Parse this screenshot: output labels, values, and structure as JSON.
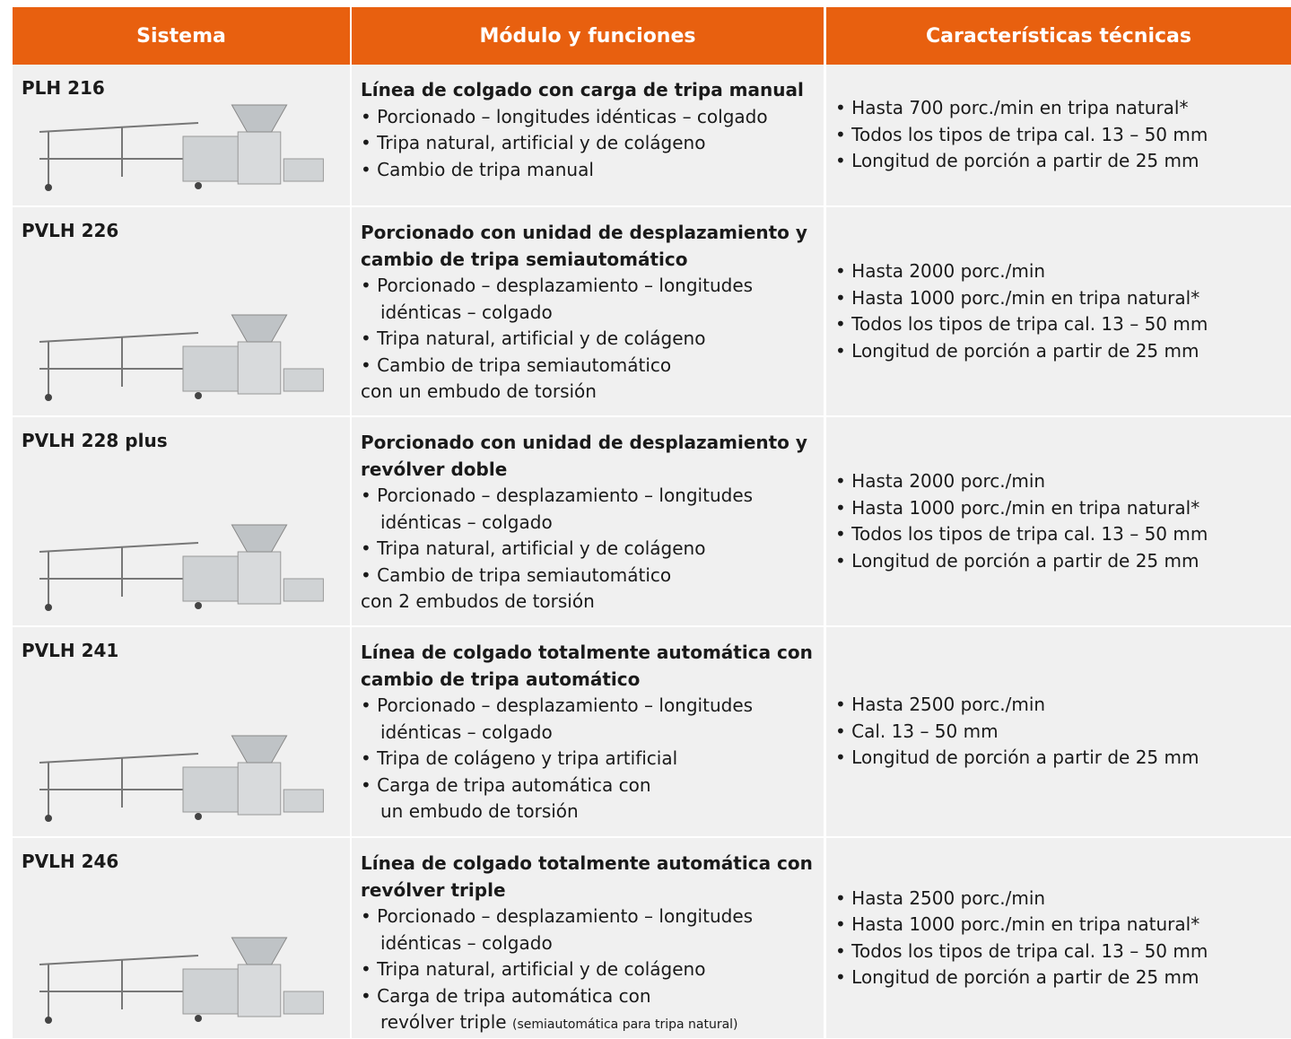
{
  "header": {
    "columns": [
      "Sistema",
      "Módulo y funciones",
      "Características técnicas"
    ]
  },
  "table": {
    "rows": [
      {
        "system": "PLH 216",
        "title": [
          "Línea de colgado con carga de tripa manual"
        ],
        "lines": [
          "• Porcionado – longitudes idénticas – colgado",
          "• Tripa natural, artificial y de colágeno",
          "• Cambio de tripa manual"
        ],
        "specs": [
          "• Hasta 700 porc./min en tripa natural*",
          "• Todos los tipos de tripa cal. 13 – 50 mm",
          "• Longitud de porción a partir de 25 mm"
        ]
      },
      {
        "system": "PVLH 226",
        "title": [
          "Porcionado con unidad de desplazamiento y",
          "cambio de tripa semiautomático"
        ],
        "lines": [
          "• Porcionado – desplazamiento – longitudes",
          "idénticas – colgado",
          "• Tripa natural, artificial y de colágeno",
          "• Cambio de tripa semiautomático",
          "con un embudo de torsión"
        ],
        "specs": [
          "• Hasta 2000 porc./min",
          "• Hasta 1000 porc./min en tripa natural*",
          "• Todos los tipos de tripa cal. 13 – 50 mm",
          "• Longitud de porción a partir de 25 mm"
        ]
      },
      {
        "system": "PVLH 228 plus",
        "title": [
          "Porcionado con unidad de desplazamiento y",
          "revólver doble"
        ],
        "lines": [
          "• Porcionado – desplazamiento – longitudes",
          "idénticas – colgado",
          "• Tripa natural, artificial y de colágeno",
          "• Cambio de tripa semiautomático",
          "con 2 embudos de torsión"
        ],
        "specs": [
          "• Hasta 2000 porc./min",
          "• Hasta 1000 porc./min en tripa natural*",
          "• Todos los tipos de tripa cal. 13 – 50 mm",
          "• Longitud de porción a partir de 25 mm"
        ]
      },
      {
        "system": "PVLH 241",
        "title": [
          "Línea de colgado totalmente automática con",
          "cambio de tripa automático"
        ],
        "lines": [
          "• Porcionado – desplazamiento – longitudes",
          "idénticas – colgado",
          "• Tripa de colágeno y tripa artificial",
          "• Carga de tripa automática con",
          "un embudo de torsión"
        ],
        "specs": [
          "• Hasta 2500 porc./min",
          "• Cal. 13 – 50 mm",
          "• Longitud de porción a partir de 25 mm"
        ]
      },
      {
        "system": "PVLH 246",
        "title": [
          "Línea de colgado totalmente automática con",
          "revólver triple"
        ],
        "lines": [
          "• Porcionado – desplazamiento – longitudes",
          "idénticas – colgado",
          "• Tripa natural, artificial y de colágeno",
          "• Carga de tripa automática con",
          "revólver triple"
        ],
        "note": "(semiautomática para tripa natural)",
        "specs": [
          "• Hasta 2500 porc./min",
          "• Hasta 1000 porc./min en tripa natural*",
          "• Todos los tipos de tripa cal. 13 – 50 mm",
          "• Longitud de porción a partir de 25 mm"
        ]
      }
    ]
  }
}
